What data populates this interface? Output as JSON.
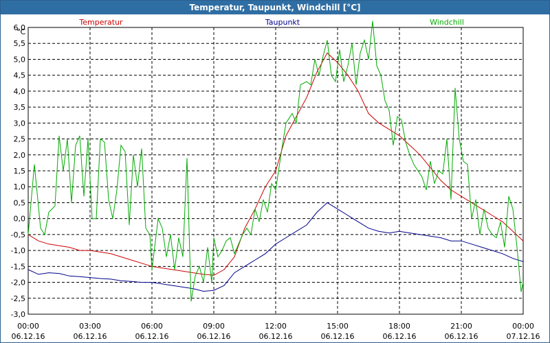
{
  "window": {
    "title": "Temperatur, Taupunkt, Windchill [°C]"
  },
  "chart_data": {
    "type": "line",
    "title": "Temperatur, Taupunkt, Windchill [°C]",
    "ylabel": "°C",
    "ylim": [
      -3.0,
      6.0
    ],
    "grid": true,
    "legend": "top",
    "x_ticks": [
      {
        "time": "00:00",
        "date": "06.12.16"
      },
      {
        "time": "03:00",
        "date": "06.12.16"
      },
      {
        "time": "06:00",
        "date": "06.12.16"
      },
      {
        "time": "09:00",
        "date": "06.12.16"
      },
      {
        "time": "12:00",
        "date": "06.12.16"
      },
      {
        "time": "15:00",
        "date": "06.12.16"
      },
      {
        "time": "18:00",
        "date": "06.12.16"
      },
      {
        "time": "21:00",
        "date": "06.12.16"
      },
      {
        "time": "00:00",
        "date": "07.12.16"
      }
    ],
    "y_ticks": [
      "-3,0",
      "-2,5",
      "-2,0",
      "-1,5",
      "-1,0",
      "-0,5",
      "0,0",
      "0,5",
      "1,0",
      "1,5",
      "2,0",
      "2,5",
      "3,0",
      "3,5",
      "4,0",
      "4,5",
      "5,0",
      "5,5",
      "6,0"
    ],
    "series": [
      {
        "name": "Temperatur",
        "color": "#cc0000",
        "points": [
          [
            0,
            -0.5
          ],
          [
            0.5,
            -0.7
          ],
          [
            1,
            -0.8
          ],
          [
            1.5,
            -0.85
          ],
          [
            2,
            -0.9
          ],
          [
            2.5,
            -1.0
          ],
          [
            3,
            -1.0
          ],
          [
            3.5,
            -1.05
          ],
          [
            4,
            -1.1
          ],
          [
            4.5,
            -1.2
          ],
          [
            5,
            -1.3
          ],
          [
            5.5,
            -1.4
          ],
          [
            6,
            -1.5
          ],
          [
            6.5,
            -1.55
          ],
          [
            7,
            -1.6
          ],
          [
            7.5,
            -1.65
          ],
          [
            8,
            -1.7
          ],
          [
            8.5,
            -1.75
          ],
          [
            9,
            -1.78
          ],
          [
            9.5,
            -1.6
          ],
          [
            10,
            -1.2
          ],
          [
            10.5,
            -0.3
          ],
          [
            11,
            0.3
          ],
          [
            11.5,
            1.0
          ],
          [
            12,
            1.5
          ],
          [
            12.5,
            2.6
          ],
          [
            13,
            3.2
          ],
          [
            13.5,
            3.8
          ],
          [
            14,
            4.6
          ],
          [
            14.5,
            5.2
          ],
          [
            15,
            4.9
          ],
          [
            15.5,
            4.5
          ],
          [
            16,
            4.0
          ],
          [
            16.5,
            3.3
          ],
          [
            17,
            3.0
          ],
          [
            17.5,
            2.8
          ],
          [
            18,
            2.6
          ],
          [
            18.5,
            2.3
          ],
          [
            19,
            2.0
          ],
          [
            19.5,
            1.6
          ],
          [
            20,
            1.2
          ],
          [
            20.5,
            0.9
          ],
          [
            21,
            0.7
          ],
          [
            21.5,
            0.5
          ],
          [
            22,
            0.3
          ],
          [
            22.5,
            0.1
          ],
          [
            23,
            -0.1
          ],
          [
            23.5,
            -0.4
          ],
          [
            24,
            -0.7
          ]
        ]
      },
      {
        "name": "Taupunkt",
        "color": "#00008b",
        "points": [
          [
            0,
            -1.6
          ],
          [
            0.5,
            -1.75
          ],
          [
            1,
            -1.7
          ],
          [
            1.5,
            -1.72
          ],
          [
            2,
            -1.8
          ],
          [
            2.5,
            -1.82
          ],
          [
            3,
            -1.85
          ],
          [
            3.5,
            -1.88
          ],
          [
            4,
            -1.9
          ],
          [
            4.5,
            -1.95
          ],
          [
            5,
            -1.97
          ],
          [
            5.5,
            -2.0
          ],
          [
            6,
            -2.0
          ],
          [
            6.5,
            -2.05
          ],
          [
            7,
            -2.1
          ],
          [
            7.5,
            -2.15
          ],
          [
            8,
            -2.2
          ],
          [
            8.5,
            -2.28
          ],
          [
            9,
            -2.25
          ],
          [
            9.5,
            -2.1
          ],
          [
            10,
            -1.7
          ],
          [
            10.5,
            -1.5
          ],
          [
            11,
            -1.3
          ],
          [
            11.5,
            -1.1
          ],
          [
            12,
            -0.8
          ],
          [
            12.5,
            -0.6
          ],
          [
            13,
            -0.4
          ],
          [
            13.5,
            -0.2
          ],
          [
            14,
            0.2
          ],
          [
            14.5,
            0.5
          ],
          [
            15,
            0.3
          ],
          [
            15.5,
            0.1
          ],
          [
            16,
            -0.1
          ],
          [
            16.5,
            -0.3
          ],
          [
            17,
            -0.4
          ],
          [
            17.5,
            -0.45
          ],
          [
            18,
            -0.4
          ],
          [
            18.5,
            -0.45
          ],
          [
            19,
            -0.5
          ],
          [
            19.5,
            -0.55
          ],
          [
            20,
            -0.6
          ],
          [
            20.5,
            -0.7
          ],
          [
            21,
            -0.7
          ],
          [
            21.5,
            -0.8
          ],
          [
            22,
            -0.9
          ],
          [
            22.5,
            -1.0
          ],
          [
            23,
            -1.1
          ],
          [
            23.5,
            -1.25
          ],
          [
            24,
            -1.35
          ]
        ]
      },
      {
        "name": "Windchill",
        "color": "#00aa00",
        "points": [
          [
            0,
            -0.5
          ],
          [
            0.3,
            1.7
          ],
          [
            0.6,
            -0.3
          ],
          [
            0.8,
            -0.5
          ],
          [
            1,
            0.2
          ],
          [
            1.3,
            0.4
          ],
          [
            1.5,
            2.6
          ],
          [
            1.7,
            1.5
          ],
          [
            1.9,
            2.5
          ],
          [
            2.1,
            0.5
          ],
          [
            2.3,
            2.3
          ],
          [
            2.5,
            2.6
          ],
          [
            2.7,
            0.7
          ],
          [
            2.9,
            2.5
          ],
          [
            3.1,
            0.0
          ],
          [
            3.3,
            0.0
          ],
          [
            3.5,
            2.5
          ],
          [
            3.7,
            2.4
          ],
          [
            3.9,
            0.6
          ],
          [
            4.1,
            0.0
          ],
          [
            4.3,
            0.9
          ],
          [
            4.5,
            2.3
          ],
          [
            4.7,
            2.1
          ],
          [
            4.9,
            -0.2
          ],
          [
            5.1,
            2.0
          ],
          [
            5.3,
            1.0
          ],
          [
            5.5,
            2.2
          ],
          [
            5.7,
            -0.3
          ],
          [
            5.9,
            -0.5
          ],
          [
            6.0,
            -1.6
          ],
          [
            6.3,
            0.0
          ],
          [
            6.5,
            -0.3
          ],
          [
            6.7,
            -1.2
          ],
          [
            6.9,
            -0.5
          ],
          [
            7.1,
            -1.6
          ],
          [
            7.3,
            -0.6
          ],
          [
            7.5,
            -1.2
          ],
          [
            7.7,
            1.9
          ],
          [
            7.9,
            -2.6
          ],
          [
            8.1,
            -1.8
          ],
          [
            8.3,
            -1.5
          ],
          [
            8.5,
            -2.0
          ],
          [
            8.7,
            -0.9
          ],
          [
            8.9,
            -2.0
          ],
          [
            9.0,
            -0.6
          ],
          [
            9.2,
            -1.2
          ],
          [
            9.4,
            -1.0
          ],
          [
            9.6,
            -0.7
          ],
          [
            9.8,
            -0.6
          ],
          [
            10,
            -1.1
          ],
          [
            10.2,
            -0.8
          ],
          [
            10.4,
            -0.5
          ],
          [
            10.6,
            -0.3
          ],
          [
            10.8,
            -0.5
          ],
          [
            11,
            0.3
          ],
          [
            11.2,
            -0.1
          ],
          [
            11.4,
            0.6
          ],
          [
            11.6,
            0.2
          ],
          [
            11.8,
            1.1
          ],
          [
            12.0,
            0.9
          ],
          [
            12.3,
            2.2
          ],
          [
            12.5,
            3.0
          ],
          [
            12.8,
            3.3
          ],
          [
            13.0,
            3.0
          ],
          [
            13.2,
            4.2
          ],
          [
            13.5,
            4.3
          ],
          [
            13.7,
            4.2
          ],
          [
            13.9,
            5.0
          ],
          [
            14.1,
            4.5
          ],
          [
            14.3,
            5.1
          ],
          [
            14.5,
            5.6
          ],
          [
            14.7,
            4.5
          ],
          [
            14.9,
            4.3
          ],
          [
            15.1,
            5.3
          ],
          [
            15.3,
            4.3
          ],
          [
            15.5,
            4.8
          ],
          [
            15.7,
            5.5
          ],
          [
            15.9,
            4.2
          ],
          [
            16.1,
            5.2
          ],
          [
            16.3,
            5.6
          ],
          [
            16.5,
            5.0
          ],
          [
            16.7,
            6.2
          ],
          [
            16.9,
            4.8
          ],
          [
            17.1,
            4.5
          ],
          [
            17.3,
            3.7
          ],
          [
            17.5,
            3.4
          ],
          [
            17.7,
            2.3
          ],
          [
            17.9,
            3.2
          ],
          [
            18.1,
            3.1
          ],
          [
            18.3,
            2.4
          ],
          [
            18.5,
            2.0
          ],
          [
            18.7,
            1.7
          ],
          [
            18.9,
            1.5
          ],
          [
            19.1,
            1.3
          ],
          [
            19.3,
            0.9
          ],
          [
            19.5,
            1.8
          ],
          [
            19.7,
            1.1
          ],
          [
            19.9,
            1.5
          ],
          [
            20.1,
            1.4
          ],
          [
            20.3,
            2.5
          ],
          [
            20.5,
            0.6
          ],
          [
            20.7,
            4.1
          ],
          [
            20.9,
            2.5
          ],
          [
            21.1,
            1.8
          ],
          [
            21.3,
            1.7
          ],
          [
            21.5,
            0.0
          ],
          [
            21.7,
            0.6
          ],
          [
            21.9,
            -0.5
          ],
          [
            22.1,
            0.3
          ],
          [
            22.3,
            -0.3
          ],
          [
            22.5,
            -0.5
          ],
          [
            22.7,
            -0.6
          ],
          [
            22.9,
            -0.1
          ],
          [
            23.1,
            -0.9
          ],
          [
            23.3,
            0.7
          ],
          [
            23.5,
            0.3
          ],
          [
            23.7,
            -0.9
          ],
          [
            23.9,
            -2.3
          ],
          [
            24,
            -2.0
          ]
        ]
      }
    ]
  }
}
